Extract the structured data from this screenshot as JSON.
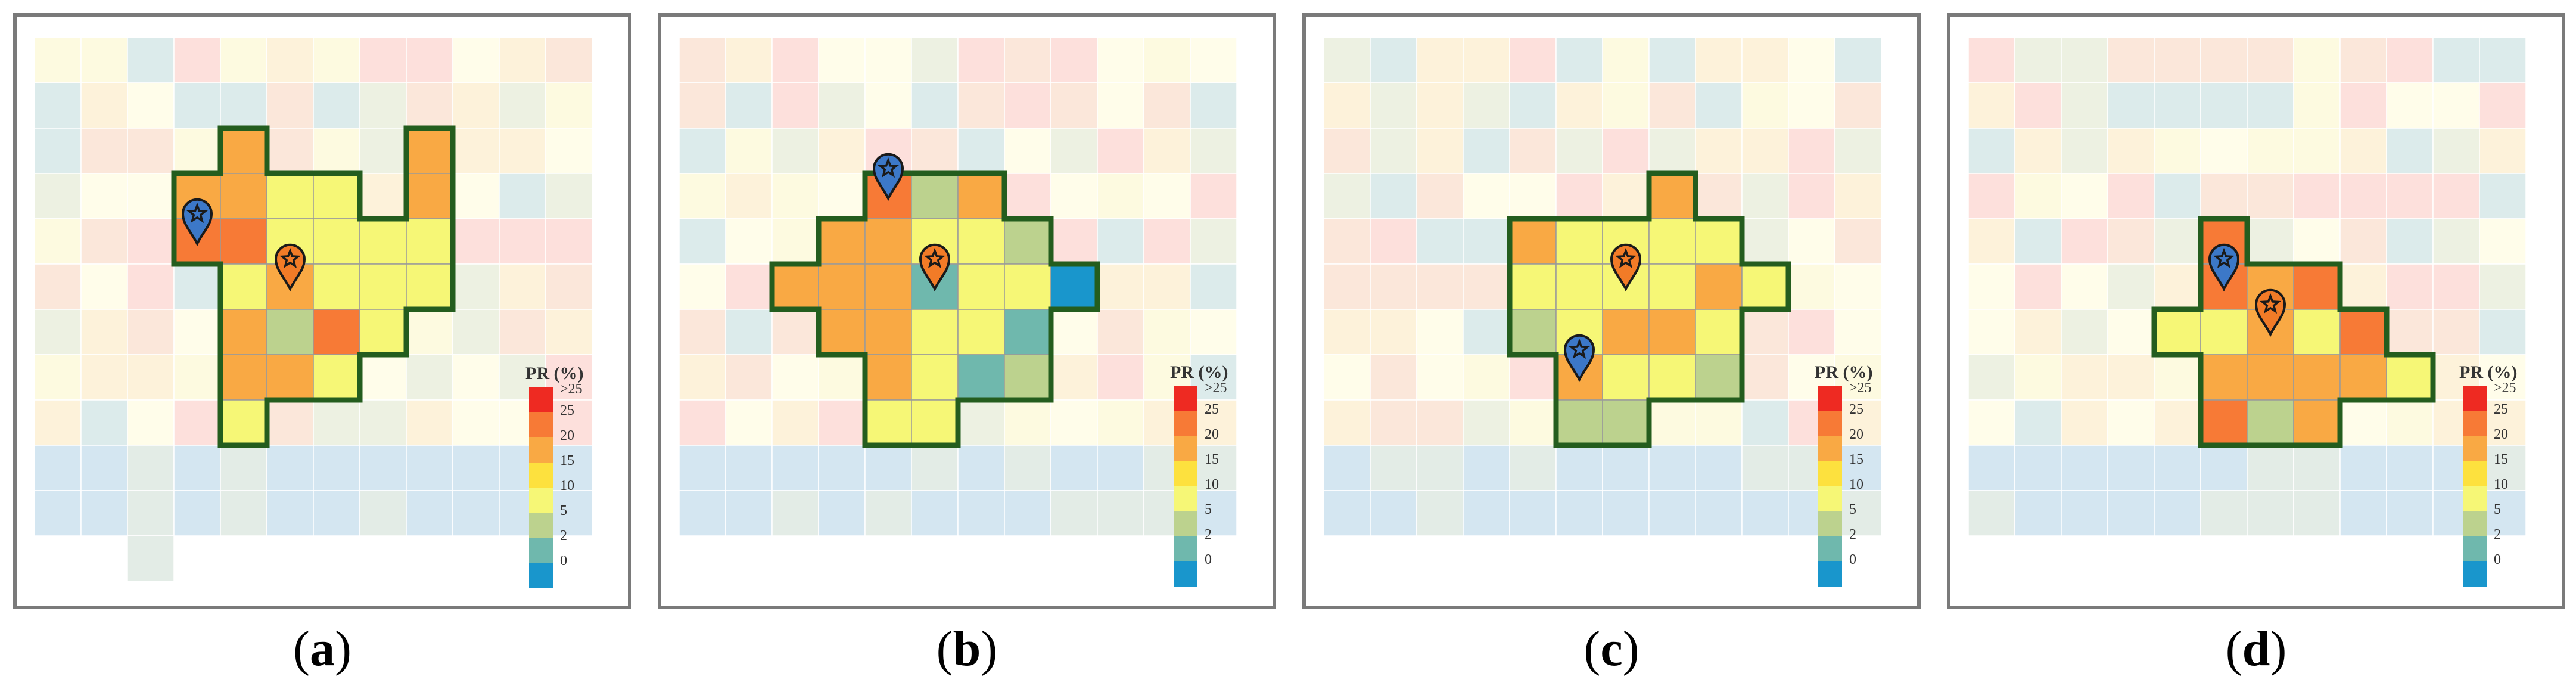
{
  "colors": {
    "gt25": "#ee2a22",
    "c25": "#f77a36",
    "c20": "#f9a944",
    "c15": "#fde13e",
    "c10": "#f6f776",
    "c5": "#bcd28e",
    "c2": "#6fb8ad",
    "c0": "#1996cc",
    "pin_blue": "#3c78c8",
    "pin_orange": "#f27b27",
    "outline": "#245d1e",
    "frame": "#7a7a7a"
  },
  "legend": {
    "title": "PR (%)",
    "ticks": [
      ">25",
      "25",
      "20",
      "15",
      "10",
      "5",
      "2",
      "0"
    ]
  },
  "panels": [
    {
      "label": "a",
      "region": [
        [
          4,
          2
        ],
        [
          8,
          2
        ],
        [
          3,
          3
        ],
        [
          4,
          3
        ],
        [
          5,
          3
        ],
        [
          6,
          3
        ],
        [
          8,
          3
        ],
        [
          3,
          4
        ],
        [
          4,
          4
        ],
        [
          5,
          4
        ],
        [
          6,
          4
        ],
        [
          7,
          4
        ],
        [
          8,
          4
        ],
        [
          4,
          5
        ],
        [
          5,
          5
        ],
        [
          6,
          5
        ],
        [
          7,
          5
        ],
        [
          8,
          5
        ],
        [
          4,
          6
        ],
        [
          5,
          6
        ],
        [
          6,
          6
        ],
        [
          7,
          6
        ],
        [
          4,
          7
        ],
        [
          5,
          7
        ],
        [
          6,
          7
        ],
        [
          4,
          8
        ]
      ],
      "cells": {
        "4,2": 15,
        "8,2": 15,
        "3,3": 15,
        "4,3": 15,
        "5,3": 10,
        "6,3": 10,
        "8,3": 15,
        "3,4": 20,
        "4,4": 20,
        "5,4": 10,
        "6,4": 10,
        "7,4": 10,
        "8,4": 10,
        "4,5": 10,
        "5,5": 15,
        "6,5": 10,
        "7,5": 10,
        "8,5": 10,
        "4,6": 15,
        "5,6": 5,
        "6,6": 20,
        "7,6": 10,
        "4,7": 15,
        "5,7": 15,
        "6,7": 10,
        "4,8": 10
      },
      "pins": [
        {
          "type": "blue",
          "col": 3,
          "row": 4
        },
        {
          "type": "orange",
          "col": 5,
          "row": 5
        }
      ]
    },
    {
      "label": "b",
      "region": [
        [
          4,
          3
        ],
        [
          5,
          3
        ],
        [
          6,
          3
        ],
        [
          3,
          4
        ],
        [
          4,
          4
        ],
        [
          5,
          4
        ],
        [
          6,
          4
        ],
        [
          7,
          4
        ],
        [
          2,
          5
        ],
        [
          3,
          5
        ],
        [
          4,
          5
        ],
        [
          5,
          5
        ],
        [
          6,
          5
        ],
        [
          7,
          5
        ],
        [
          8,
          5
        ],
        [
          3,
          6
        ],
        [
          4,
          6
        ],
        [
          5,
          6
        ],
        [
          6,
          6
        ],
        [
          7,
          6
        ],
        [
          4,
          7
        ],
        [
          5,
          7
        ],
        [
          6,
          7
        ],
        [
          7,
          7
        ],
        [
          4,
          8
        ],
        [
          5,
          8
        ]
      ],
      "cells": {
        "4,3": 20,
        "5,3": 5,
        "6,3": 15,
        "3,4": 15,
        "4,4": 15,
        "5,4": 10,
        "6,4": 10,
        "7,4": 5,
        "2,5": 15,
        "3,5": 15,
        "4,5": 15,
        "5,5": 2,
        "6,5": 10,
        "7,5": 10,
        "8,5": 0,
        "3,6": 15,
        "4,6": 15,
        "5,6": 10,
        "6,6": 10,
        "7,6": 2,
        "4,7": 15,
        "5,7": 10,
        "6,7": 2,
        "7,7": 5,
        "4,8": 10,
        "5,8": 10
      },
      "pins": [
        {
          "type": "blue",
          "col": 4,
          "row": 3
        },
        {
          "type": "orange",
          "col": 5,
          "row": 5
        }
      ]
    },
    {
      "label": "c",
      "region": [
        [
          7,
          3
        ],
        [
          4,
          4
        ],
        [
          5,
          4
        ],
        [
          6,
          4
        ],
        [
          7,
          4
        ],
        [
          8,
          4
        ],
        [
          4,
          5
        ],
        [
          5,
          5
        ],
        [
          6,
          5
        ],
        [
          7,
          5
        ],
        [
          8,
          5
        ],
        [
          9,
          5
        ],
        [
          4,
          6
        ],
        [
          5,
          6
        ],
        [
          6,
          6
        ],
        [
          7,
          6
        ],
        [
          8,
          6
        ],
        [
          5,
          7
        ],
        [
          6,
          7
        ],
        [
          7,
          7
        ],
        [
          8,
          7
        ],
        [
          5,
          8
        ],
        [
          6,
          8
        ]
      ],
      "cells": {
        "7,3": 15,
        "4,4": 15,
        "5,4": 10,
        "6,4": 10,
        "7,4": 10,
        "8,4": 10,
        "4,5": 10,
        "5,5": 10,
        "6,5": 10,
        "7,5": 10,
        "8,5": 15,
        "9,5": 10,
        "4,6": 5,
        "5,6": 10,
        "6,6": 15,
        "7,6": 15,
        "8,6": 10,
        "5,7": 15,
        "6,7": 10,
        "7,7": 10,
        "8,7": 5,
        "5,8": 5,
        "6,8": 5
      },
      "pins": [
        {
          "type": "orange",
          "col": 6,
          "row": 5
        },
        {
          "type": "blue",
          "col": 5,
          "row": 7
        }
      ]
    },
    {
      "label": "d",
      "region": [
        [
          5,
          4
        ],
        [
          5,
          5
        ],
        [
          6,
          5
        ],
        [
          7,
          5
        ],
        [
          4,
          6
        ],
        [
          5,
          6
        ],
        [
          6,
          6
        ],
        [
          7,
          6
        ],
        [
          8,
          6
        ],
        [
          5,
          7
        ],
        [
          6,
          7
        ],
        [
          7,
          7
        ],
        [
          8,
          7
        ],
        [
          9,
          7
        ],
        [
          5,
          8
        ],
        [
          6,
          8
        ],
        [
          7,
          8
        ]
      ],
      "cells": {
        "5,4": 25,
        "5,5": 25,
        "6,5": 15,
        "7,5": 20,
        "4,6": 10,
        "5,6": 10,
        "6,6": 15,
        "7,6": 10,
        "8,6": 20,
        "5,7": 15,
        "6,7": 15,
        "7,7": 15,
        "8,7": 15,
        "9,7": 10,
        "5,8": 20,
        "6,8": 5,
        "7,8": 15
      },
      "pins": [
        {
          "type": "blue",
          "col": 5,
          "row": 5
        },
        {
          "type": "orange",
          "col": 6,
          "row": 6
        }
      ]
    }
  ]
}
